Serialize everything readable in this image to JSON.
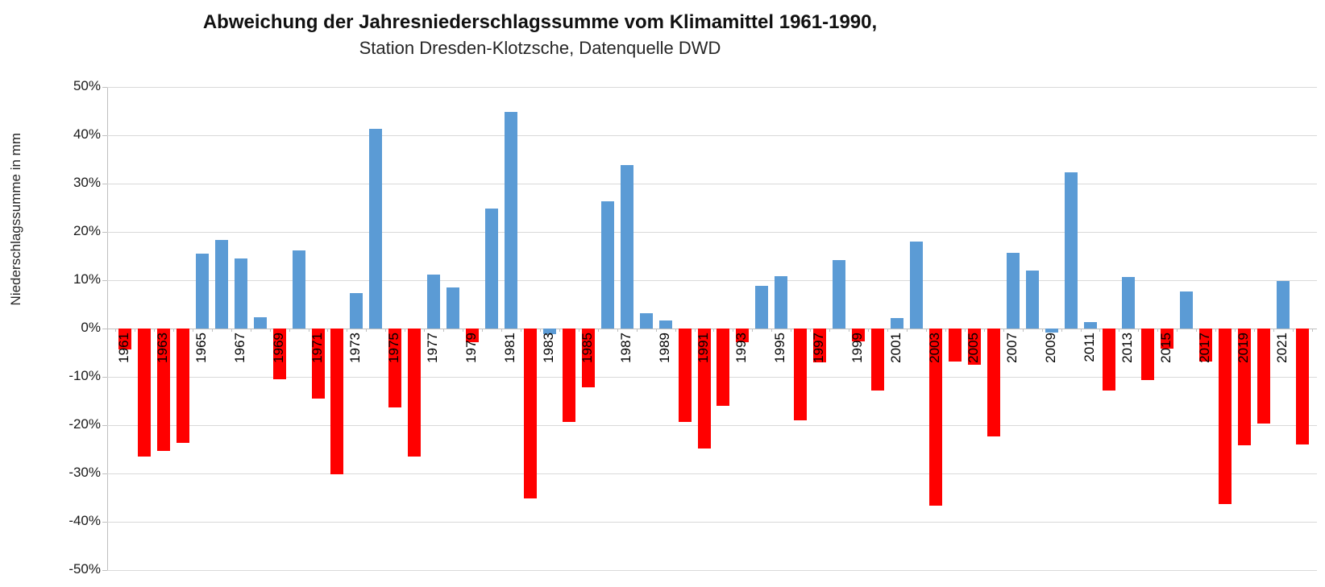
{
  "chart": {
    "title": "Abweichung der Jahresniederschlagssumme vom Klimamittel 1961-1990,",
    "subtitle": "Station Dresden-Klotzsche, Datenquelle DWD",
    "y_axis_label": "Niederschlagssumme in mm"
  },
  "chart_data": {
    "type": "bar",
    "title": "Abweichung der Jahresniederschlagssumme vom Klimamittel 1961-1990,",
    "subtitle": "Station Dresden-Klotzsche, Datenquelle DWD",
    "xlabel": "",
    "ylabel": "Niederschlagssumme in mm",
    "ylim": [
      -50,
      50
    ],
    "ytick_step": 10,
    "ytick_suffix": "%",
    "grid": true,
    "legend": "none",
    "categories": [
      1961,
      1962,
      1963,
      1964,
      1965,
      1966,
      1967,
      1968,
      1969,
      1970,
      1971,
      1972,
      1973,
      1974,
      1975,
      1976,
      1977,
      1978,
      1979,
      1980,
      1981,
      1982,
      1983,
      1984,
      1985,
      1986,
      1987,
      1988,
      1989,
      1990,
      1991,
      1992,
      1993,
      1994,
      1995,
      1996,
      1997,
      1998,
      1999,
      2000,
      2001,
      2002,
      2003,
      2004,
      2005,
      2006,
      2007,
      2008,
      2009,
      2010,
      2011,
      2012,
      2013,
      2014,
      2015,
      2016,
      2017,
      2018,
      2019,
      2020,
      2021,
      2022
    ],
    "values": [
      -4.3,
      -26.5,
      -25.4,
      -23.7,
      15.5,
      18.3,
      14.5,
      2.3,
      -10.5,
      16.1,
      -14.5,
      -30.1,
      7.4,
      41.3,
      -16.3,
      -26.5,
      11.1,
      8.5,
      -2.9,
      24.8,
      44.9,
      -35.2,
      -1.1,
      -19.3,
      -12.2,
      26.3,
      33.8,
      3.2,
      1.7,
      -19.4,
      -24.9,
      -16.0,
      -2.8,
      8.8,
      10.9,
      -19.0,
      -7.0,
      14.2,
      -2.7,
      -12.9,
      2.2,
      18.0,
      -36.6,
      -6.8,
      -7.5,
      -22.3,
      15.6,
      12.0,
      -0.9,
      32.4,
      1.3,
      -12.8,
      10.7,
      -10.6,
      -4.2,
      7.7,
      -6.8,
      -36.4,
      -24.1,
      -19.6,
      9.9,
      -24.0
    ],
    "xtick_labeled_years": [
      1961,
      1963,
      1965,
      1967,
      1969,
      1971,
      1973,
      1975,
      1977,
      1979,
      1981,
      1983,
      1985,
      1987,
      1989,
      1991,
      1993,
      1995,
      1997,
      1999,
      2001,
      2003,
      2005,
      2007,
      2009,
      2011,
      2013,
      2015,
      2017,
      2019,
      2021
    ],
    "bar_colors": {
      "positive": "#5B9BD5",
      "negative": "#FF0000"
    },
    "negative_blue_years": [
      1983,
      2009
    ],
    "gridline_color": "#D9D9D9",
    "axis_color": "#BFBFBF"
  }
}
